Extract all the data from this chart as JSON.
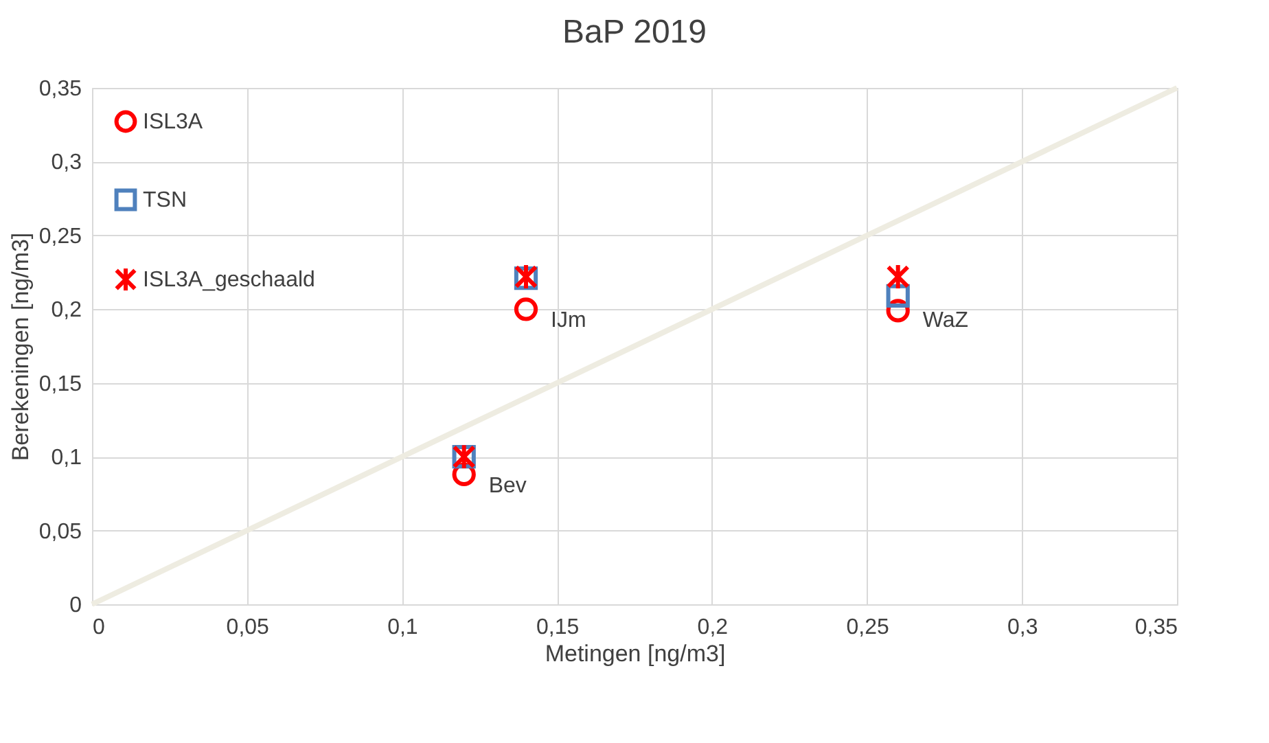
{
  "chart_data": {
    "type": "scatter",
    "title": "BaP 2019",
    "xlabel": "Metingen [ng/m3]",
    "ylabel": "Berekeningen [ng/m3]",
    "x": [
      0.12,
      0.14,
      0.26
    ],
    "series": [
      {
        "name": "ISL3A",
        "color": "#ff0000",
        "marker": "circle",
        "values": [
          0.088,
          0.2,
          0.199
        ]
      },
      {
        "name": "TSN",
        "color": "#4f81bd",
        "marker": "square",
        "values": [
          0.1,
          0.221,
          0.209
        ]
      },
      {
        "name": "ISL3A_geschaald",
        "color": "#ff0000",
        "marker": "cross",
        "values": [
          0.1,
          0.222,
          0.222
        ]
      },
      {
        "type": "line",
        "color": "#eeece1",
        "x": [
          0,
          0.35
        ],
        "values": [
          0,
          0.35
        ]
      }
    ],
    "annotations": [
      {
        "text": "Bev",
        "x": 0.12,
        "y": 0.088
      },
      {
        "text": "IJm",
        "x": 0.14,
        "y": 0.2
      },
      {
        "text": "WaZ",
        "x": 0.26,
        "y": 0.2
      }
    ],
    "xlim": [
      0,
      0.35
    ],
    "ylim": [
      0,
      0.35
    ],
    "xticks": [
      0,
      {
        "value": 0.05,
        "label": "0,05"
      },
      {
        "value": 0.1,
        "label": "0,1"
      },
      {
        "value": 0.15,
        "label": "0,15"
      },
      {
        "value": 0.2,
        "label": "0,2"
      },
      {
        "value": 0.25,
        "label": "0,25"
      },
      {
        "value": 0.3,
        "label": "0,3"
      },
      {
        "value": 0.35,
        "label": "0,35"
      }
    ],
    "yticks": [
      0,
      {
        "value": 0.05,
        "label": "0,05"
      },
      {
        "value": 0.1,
        "label": "0,1"
      },
      {
        "value": 0.15,
        "label": "0,15"
      },
      {
        "value": 0.2,
        "label": "0,2"
      },
      {
        "value": 0.25,
        "label": "0,25"
      },
      {
        "value": 0.3,
        "label": "0,3"
      },
      {
        "value": 0.35,
        "label": "0,35"
      }
    ],
    "grid": true,
    "legend": "top left"
  }
}
